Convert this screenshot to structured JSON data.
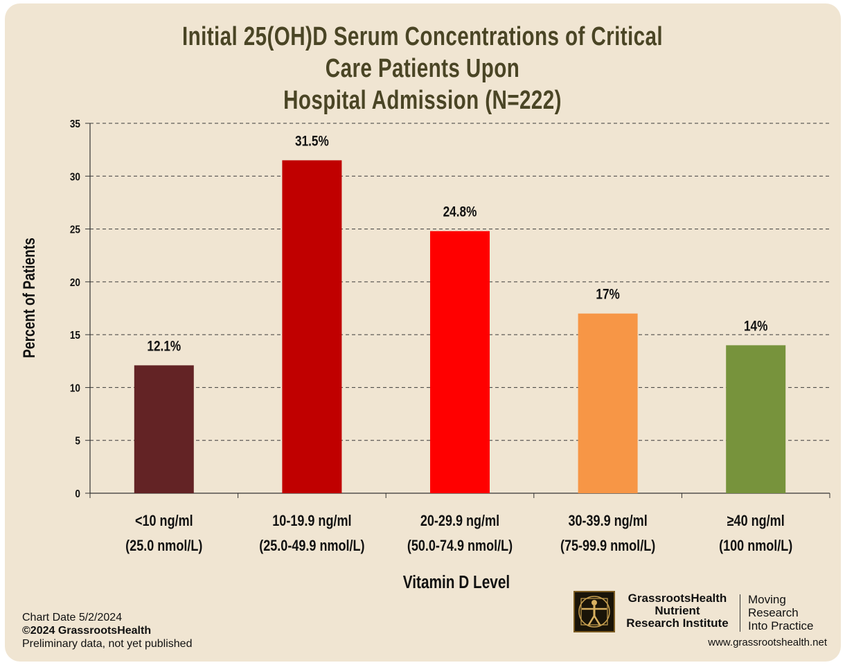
{
  "chart_data": {
    "type": "bar",
    "title_lines": [
      "Initial 25(OH)D Serum Concentrations of Critical Care Patients Upon",
      "Hospital Admission (N=222)"
    ],
    "xlabel": "Vitamin D Level",
    "ylabel": "Percent of Patients",
    "ylim": [
      0,
      35
    ],
    "yticks": [
      0,
      5,
      10,
      15,
      20,
      25,
      30,
      35
    ],
    "grid": true,
    "categories": [
      [
        "<10 ng/ml",
        "(25.0 nmol/L)"
      ],
      [
        "10-19.9 ng/ml",
        "(25.0-49.9 nmol/L)"
      ],
      [
        "20-29.9 ng/ml",
        "(50.0-74.9 nmol/L)"
      ],
      [
        "30-39.9 ng/ml",
        "(75-99.9 nmol/L)"
      ],
      [
        "≥40 ng/ml",
        "(100 nmol/L)"
      ]
    ],
    "values": [
      12.1,
      31.5,
      24.8,
      17,
      14
    ],
    "data_labels": [
      "12.1%",
      "31.5%",
      "24.8%",
      "17%",
      "14%"
    ],
    "colors": [
      "#632325",
      "#c00000",
      "#ff0000",
      "#f79646",
      "#77933c"
    ]
  },
  "footer": {
    "chart_date": "Chart Date 5/2/2024",
    "copyright": "©2024 GrassrootsHealth",
    "note": "Preliminary data, not yet published",
    "org_lines": [
      "GrassrootsHealth",
      "Nutrient",
      "Research Institute"
    ],
    "tagline_lines": [
      "Moving",
      "Research",
      "Into Practice"
    ],
    "url": "www.grassrootshealth.net"
  }
}
